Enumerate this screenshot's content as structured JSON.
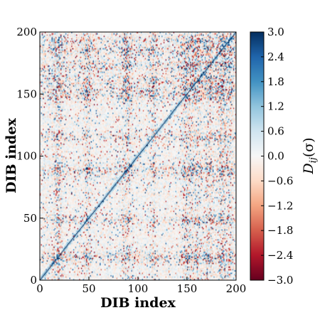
{
  "chart_data": {
    "type": "heatmap",
    "title": "",
    "xlabel": "DIB index",
    "ylabel": "DIB index",
    "xlim": [
      0,
      200
    ],
    "ylim": [
      0,
      200
    ],
    "x_ticks": [
      "0",
      "50",
      "100",
      "150",
      "200"
    ],
    "y_ticks": [
      "0",
      "50",
      "100",
      "150",
      "200"
    ],
    "matrix_size": 200,
    "colorbar": {
      "label": "D_ij(σ)",
      "label_main": "D",
      "label_sub": "ij",
      "label_arg": "(σ)",
      "range": [
        -3.0,
        3.0
      ],
      "ticks": [
        "−3.0",
        "−2.4",
        "−1.8",
        "−1.2",
        "−0.6",
        "0.0",
        "0.6",
        "1.2",
        "1.8",
        "2.4",
        "3.0"
      ],
      "colormap": "RdBu (red = negative, blue = positive)"
    },
    "diagonal_value": 3.0,
    "notes": "Symmetric-looking correlation-distance matrix; strong blue diagonal; stripe features near indices 20, 48, 88, 150-195"
  },
  "colors": {
    "neg_strong": "#67001f",
    "neg_mid": "#e58267",
    "neutral": "#f7f7f7",
    "pos_mid": "#6aaed6",
    "pos_strong": "#053061"
  }
}
